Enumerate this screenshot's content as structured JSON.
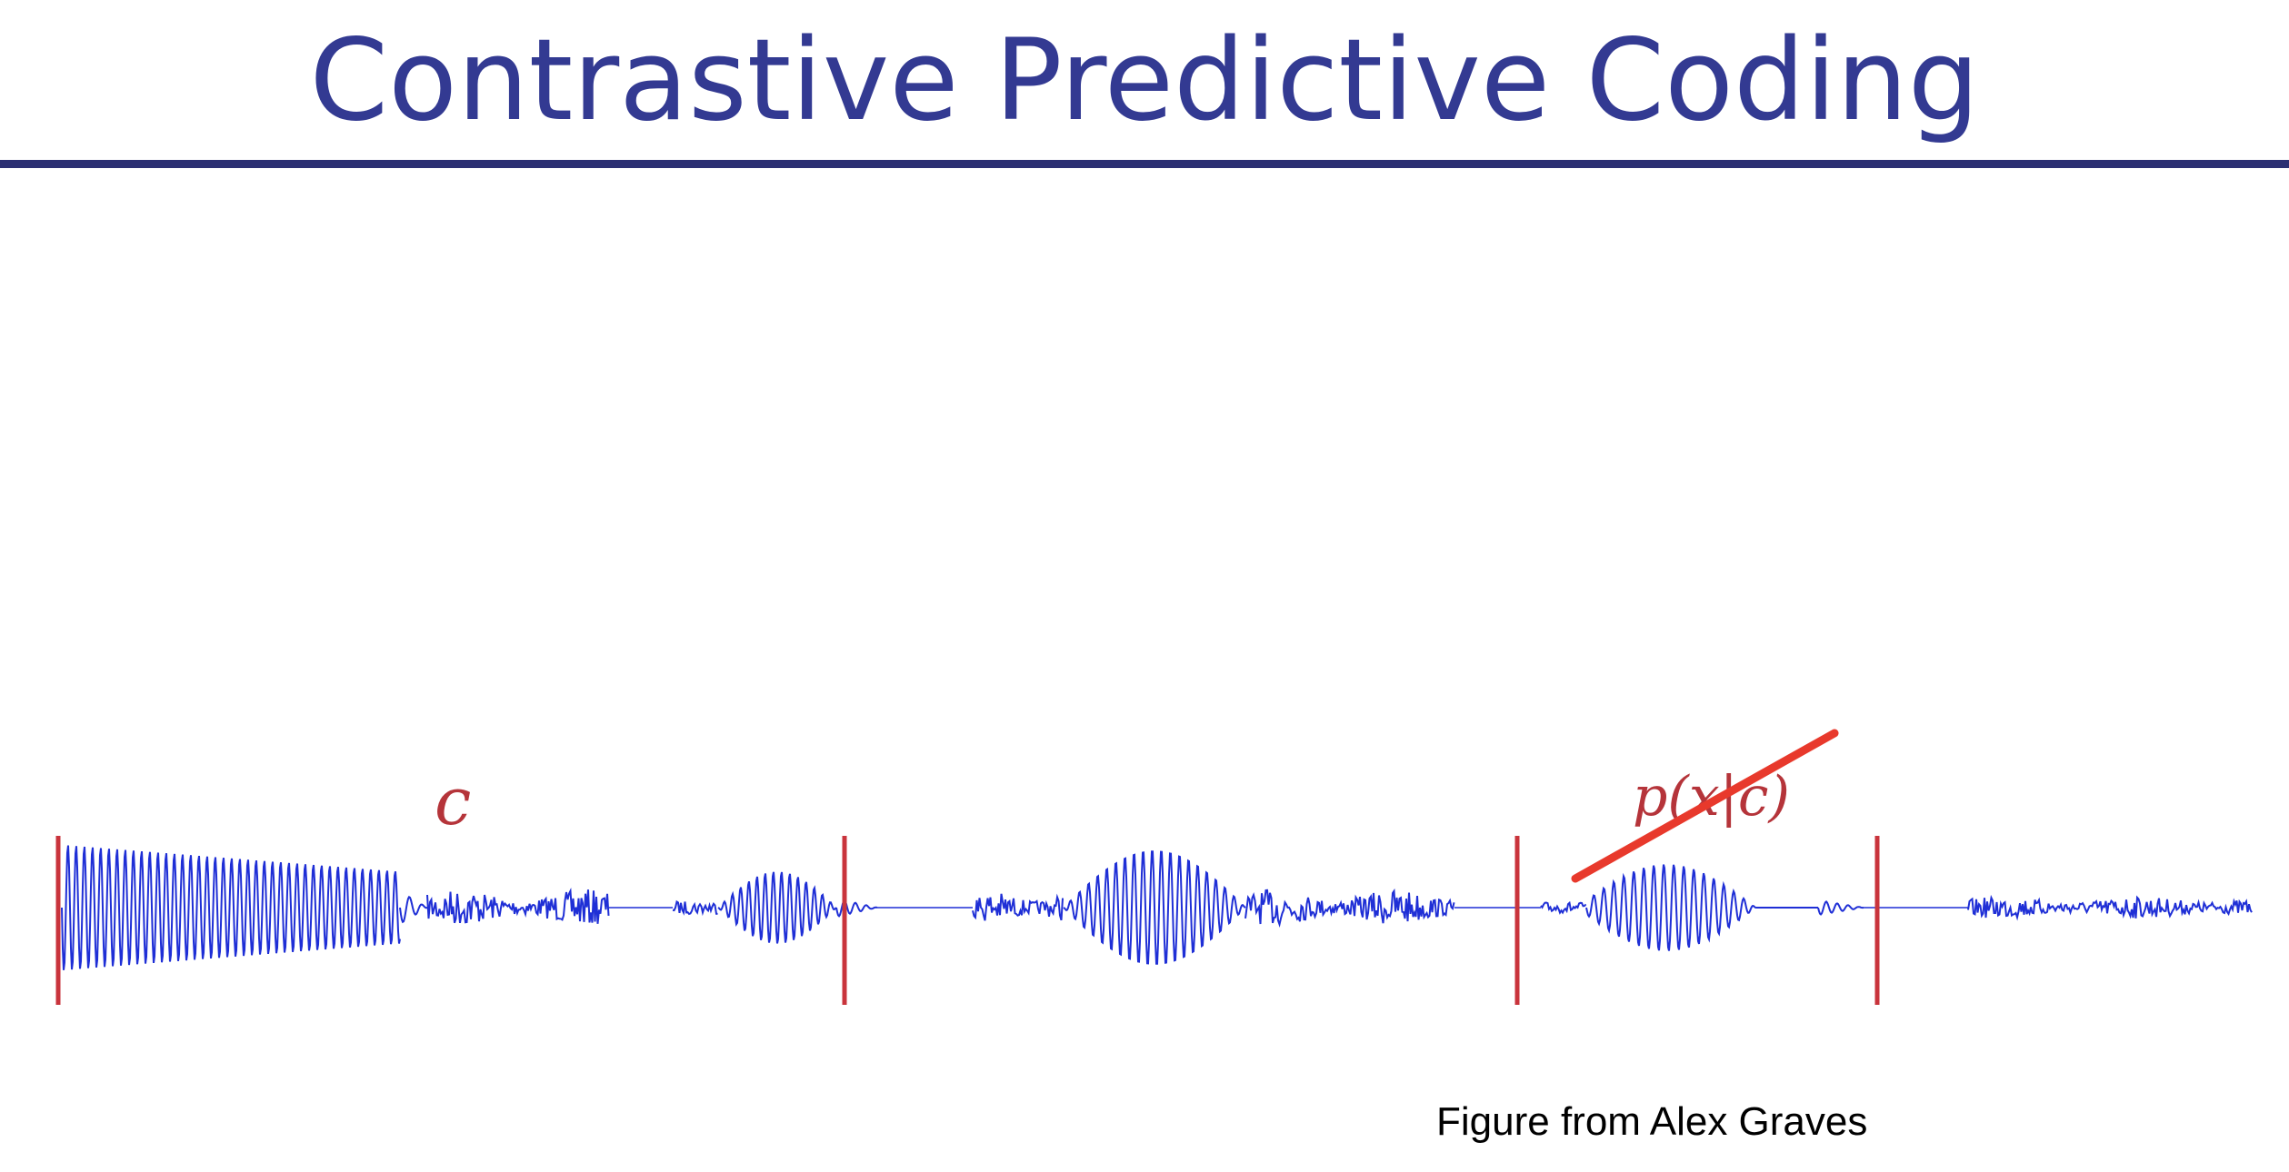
{
  "slide": {
    "title": "Contrastive Predictive Coding",
    "caption": "Figure from Alex Graves"
  },
  "figure": {
    "context_label": "c",
    "prediction_label": "p(x|c)",
    "prediction_crossed_out": true,
    "colors": {
      "title": "#333a92",
      "rule": "#2b2f72",
      "waveform": "#1f2fd6",
      "markers": "#c9343c",
      "strike": "#e8392c"
    }
  }
}
